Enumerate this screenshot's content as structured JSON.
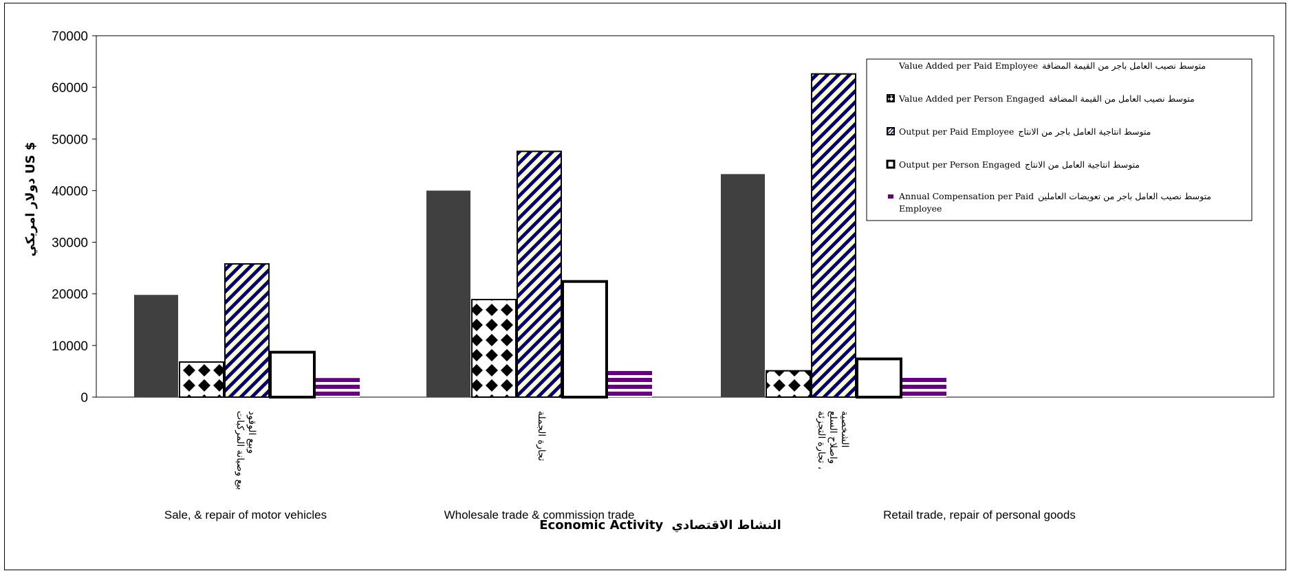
{
  "chart_data": {
    "type": "bar",
    "ylabel": "دولار امريكي US $",
    "xlabel_ar": "النشاط الاقتصادي",
    "xlabel_en": "Economic Activity",
    "ylim": [
      0,
      70000
    ],
    "yticks": [
      0,
      10000,
      20000,
      30000,
      40000,
      50000,
      60000,
      70000
    ],
    "categories": [
      {
        "en": "Sale, & repair of motor vehicles",
        "ar_lines": [
          "بيع وصيانة المركبات",
          "وبيع الوقود"
        ]
      },
      {
        "en": "Wholesale trade & commission trade",
        "ar_lines": [
          "تجارة الجملة"
        ]
      },
      {
        "en": "Retail trade, repair of personal goods",
        "ar_lines": [
          "تجارة التجزئة ،",
          "واصلاح السلع",
          "الشخصية"
        ]
      }
    ],
    "series": [
      {
        "name": "متوسط نصيب العامل باجر من القيمة المضافة Value Added per Paid Employee",
        "legend_ar": "متوسط نصيب العامل باجر من القيمة المضافة",
        "legend_en": "Value Added per Paid Employee",
        "pattern": "solid",
        "values": [
          19800,
          40000,
          43200
        ]
      },
      {
        "name": "متوسط نصيب العامل من القيمة المضافة Value Added per Person Engaged",
        "legend_ar": "متوسط نصيب العامل من القيمة المضافة",
        "legend_en": "Value Added per Person Engaged",
        "pattern": "diamond",
        "values": [
          6800,
          18900,
          5100
        ]
      },
      {
        "name": "متوسط انتاجية العامل باجر من الانتاج Output per Paid Employee",
        "legend_ar": "متوسط انتاجية العامل باجر من الانتاج",
        "legend_en": "Output per Paid Employee",
        "pattern": "diagonal",
        "values": [
          25800,
          47600,
          62600
        ]
      },
      {
        "name": "متوسط انتاجية العامل من الانتاج Output per Person Engaged",
        "legend_ar": "متوسط انتاجية العامل من الانتاج",
        "legend_en": "Output per Person Engaged",
        "pattern": "hollow",
        "values": [
          8700,
          22400,
          7400
        ]
      },
      {
        "name": "متوسط نصيب العامل باجر من تعويضات العاملين Annual Compensation per Paid Employee",
        "legend_ar": "متوسط نصيب العامل باجر من تعويضات العاملين",
        "legend_en": "Annual Compensation per Paid",
        "legend_en_line2": "Employee",
        "pattern": "horizontal",
        "values": [
          3700,
          5100,
          4000
        ]
      }
    ],
    "legend_placement": "top-right",
    "grid": false
  },
  "colors": {
    "solid": "#404040",
    "pattern_bg": "#ffffcc",
    "diagonal_stripe": "#000080",
    "horizontal_stripe": "#660080",
    "outline": "#000000"
  }
}
